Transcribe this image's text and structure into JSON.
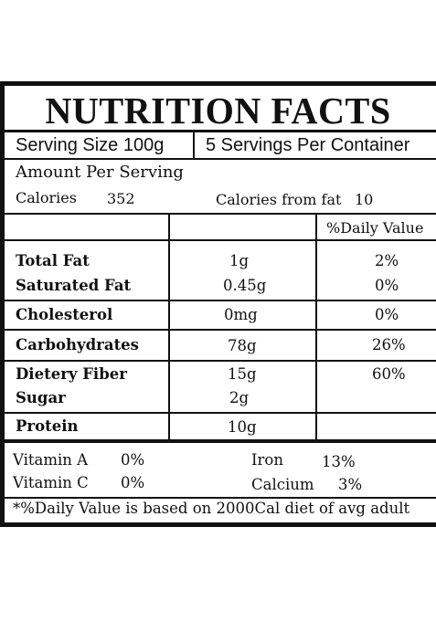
{
  "title": "NUTRITION FACTS",
  "serving": {
    "size": "Serving Size 100g",
    "per_container": "5 Servings Per Container"
  },
  "amount_header": "Amount Per Serving",
  "calories": {
    "label": "Calories",
    "value": "352",
    "fat_label": "Calories from fat",
    "fat_value": "10"
  },
  "dv_header": "%Daily Value",
  "rows": [
    {
      "name": "Total Fat",
      "amount": "1g",
      "dv": "2%"
    },
    {
      "name": "Saturated Fat",
      "amount": "0.45g",
      "dv": "0%"
    },
    {
      "name": "Cholesterol",
      "amount": "0mg",
      "dv": "0%"
    },
    {
      "name": "Carbohydrates",
      "amount": "78g",
      "dv": "26%"
    },
    {
      "name": "Dietery Fiber",
      "amount": "15g",
      "dv": "60%"
    },
    {
      "name": "Sugar",
      "amount": "2g",
      "dv": ""
    },
    {
      "name": "Protein",
      "amount": "10g",
      "dv": ""
    }
  ],
  "vitamins": [
    {
      "name": "Vitamin A",
      "value": "0%"
    },
    {
      "name": "Iron",
      "value": "13%"
    },
    {
      "name": "Vitamin C",
      "value": "0%"
    },
    {
      "name": "Calcium",
      "value": "3%"
    }
  ],
  "footnote": "*%Daily Value is based on 2000Cal diet of avg adult"
}
